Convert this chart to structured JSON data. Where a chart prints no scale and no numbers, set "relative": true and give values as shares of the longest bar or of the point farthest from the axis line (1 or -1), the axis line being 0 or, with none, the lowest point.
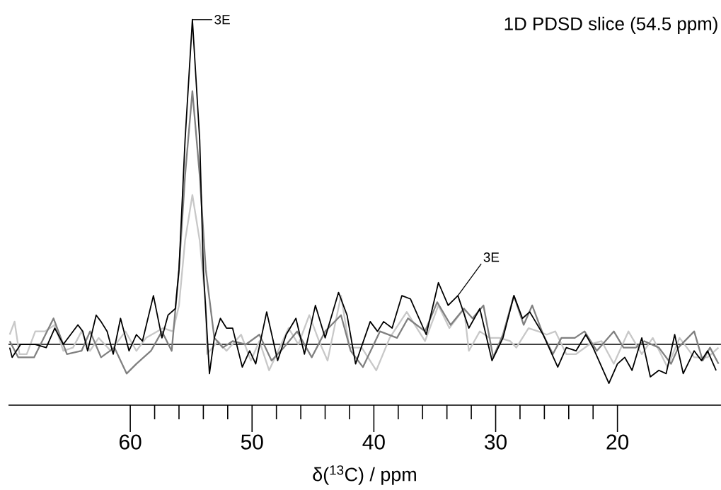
{
  "chart_data": {
    "type": "line",
    "title": "1D PDSD slice (54.5 ppm)",
    "xlabel": "δ($^{13}$C) / ppm",
    "relative": true,
    "xlim": [
      70,
      11.5
    ],
    "xticks": [
      60,
      50,
      40,
      30,
      20
    ],
    "annotations": [
      {
        "text": "3E",
        "x": 54.9,
        "y": 1
      },
      {
        "text": "3E",
        "x": 33.1,
        "y": 0.15
      }
    ],
    "series": [
      {
        "color": "#c8c8c8",
        "x": [
          69.9,
          69.5,
          69.1,
          68.5,
          67.8,
          67.0,
          66.2,
          65.5,
          64.7,
          64.0,
          63.3,
          62.6,
          61.6,
          60.4,
          59.5,
          58.7,
          57.3,
          56.5,
          56.0,
          55.5,
          54.9,
          54.3,
          53.8,
          53.7,
          52.8,
          52.1,
          50.9,
          50.1,
          49.4,
          48.6,
          47.0,
          46.2,
          45.3,
          44.5,
          43.8,
          42.7,
          42.0,
          41.0,
          39.8,
          38.7,
          37.3,
          35.8,
          34.7,
          33.8,
          32.6,
          32.2,
          31.3,
          30.5,
          29.7,
          28.8,
          28.3,
          27.3,
          26.5,
          25.8,
          25.1,
          24.2,
          23.4,
          22.3,
          21.3,
          20.3,
          19.1,
          18.0,
          17.1,
          15.9,
          14.9,
          13.7,
          12.6,
          11.7
        ],
        "values": [
          0.03,
          0.07,
          -0.03,
          -0.03,
          0.04,
          0.04,
          0.06,
          -0.02,
          -0.01,
          0.04,
          -0.02,
          0.02,
          -0.02,
          0.04,
          -0.02,
          0.02,
          0.05,
          0.04,
          0.12,
          0.32,
          0.46,
          0.32,
          0.12,
          -0.03,
          0.01,
          -0.02,
          0.03,
          -0.05,
          0.01,
          -0.08,
          0.05,
          0.0,
          0.09,
          0.01,
          -0.05,
          0.15,
          -0.01,
          -0.01,
          -0.08,
          0.02,
          0.1,
          0.01,
          0.12,
          0.05,
          0.11,
          -0.02,
          0.04,
          0.02,
          0.02,
          0.01,
          -0.01,
          0.05,
          0.04,
          0.03,
          0.04,
          -0.03,
          -0.03,
          0.0,
          0.01,
          -0.06,
          0.04,
          -0.03,
          0.02,
          -0.07,
          0.02,
          -0.04,
          -0.04,
          -0.01
        ]
      },
      {
        "color": "#808080",
        "x": [
          69.9,
          69.2,
          67.9,
          66.3,
          65.2,
          64.0,
          63.3,
          62.4,
          61.3,
          60.3,
          59.5,
          58.3,
          57.4,
          56.6,
          56.0,
          55.5,
          54.9,
          54.3,
          53.8,
          53.1,
          52.4,
          51.6,
          50.5,
          49.4,
          48.4,
          47.4,
          46.3,
          45.1,
          44.0,
          42.7,
          41.9,
          40.9,
          39.5,
          38.1,
          37.2,
          35.8,
          34.8,
          33.7,
          32.6,
          31.9,
          31.0,
          30.2,
          29.4,
          28.5,
          27.7,
          27.0,
          26.1,
          25.3,
          24.6,
          23.5,
          22.7,
          21.7,
          20.3,
          19.5,
          18.5,
          17.8,
          16.6,
          15.6,
          15.0,
          13.7,
          13.0,
          12.4,
          11.7
        ],
        "values": [
          0.01,
          -0.04,
          -0.04,
          0.08,
          -0.03,
          -0.02,
          0.04,
          -0.04,
          -0.01,
          -0.09,
          -0.06,
          -0.02,
          0.04,
          -0.02,
          0.23,
          0.52,
          0.78,
          0.52,
          0.23,
          0.02,
          -0.01,
          0.01,
          0.0,
          0.03,
          -0.05,
          -0.01,
          0.04,
          -0.04,
          0.04,
          0.09,
          -0.02,
          -0.07,
          0.04,
          0.02,
          0.08,
          0.04,
          0.13,
          0.06,
          0.11,
          0.08,
          0.12,
          -0.04,
          0.03,
          0.15,
          0.06,
          0.12,
          0.03,
          -0.03,
          0.02,
          0.02,
          0.04,
          -0.02,
          0.04,
          -0.01,
          -0.01,
          0.01,
          -0.01,
          -0.06,
          -0.01,
          0.04,
          -0.05,
          -0.01,
          -0.06
        ]
      },
      {
        "color": "#000000",
        "x": [
          69.9,
          69.7,
          69.0,
          67.8,
          66.9,
          66.2,
          65.5,
          64.3,
          63.9,
          63.5,
          62.8,
          62.4,
          61.9,
          61.4,
          60.8,
          60.1,
          59.5,
          59.0,
          58.1,
          57.4,
          56.9,
          56.3,
          56.0,
          55.5,
          54.9,
          54.3,
          54.0,
          53.5,
          53.1,
          52.6,
          52.1,
          51.6,
          50.8,
          50.2,
          49.7,
          48.8,
          47.9,
          47.2,
          46.4,
          45.7,
          44.8,
          44.0,
          42.9,
          42.2,
          41.5,
          40.3,
          39.7,
          39.2,
          38.5,
          37.7,
          37.0,
          35.7,
          34.7,
          33.9,
          33.1,
          32.2,
          31.3,
          30.3,
          29.4,
          28.5,
          27.8,
          27.2,
          26.1,
          24.9,
          24.2,
          23.4,
          22.6,
          22.0,
          20.7,
          20.0,
          19.4,
          18.8,
          18.0,
          17.3,
          16.6,
          16.0,
          15.3,
          14.6,
          13.7,
          13.1,
          12.6,
          11.9
        ],
        "values": [
          -0.01,
          -0.04,
          0.0,
          0.0,
          -0.01,
          0.05,
          0.0,
          0.06,
          0.04,
          -0.02,
          0.09,
          0.07,
          0.04,
          -0.03,
          0.08,
          -0.02,
          0.03,
          0.01,
          0.15,
          0.02,
          0.09,
          0.11,
          0.23,
          0.63,
          1,
          0.63,
          0.23,
          -0.09,
          0.02,
          0.08,
          0.05,
          0.05,
          -0.07,
          -0.02,
          -0.06,
          0.1,
          -0.05,
          0.03,
          0.08,
          -0.03,
          0.12,
          0.02,
          0.16,
          0.09,
          -0.06,
          0.07,
          0.04,
          0.07,
          0.05,
          0.15,
          0.14,
          0.03,
          0.19,
          0.12,
          0.15,
          0.05,
          0.11,
          -0.05,
          0.02,
          0.15,
          0.08,
          0.1,
          0.03,
          -0.07,
          -0.01,
          -0.02,
          0.03,
          -0.01,
          -0.12,
          -0.06,
          -0.04,
          -0.08,
          0.02,
          -0.1,
          -0.08,
          -0.09,
          0.03,
          -0.09,
          -0.02,
          -0.05,
          -0.02,
          -0.08
        ]
      }
    ]
  }
}
